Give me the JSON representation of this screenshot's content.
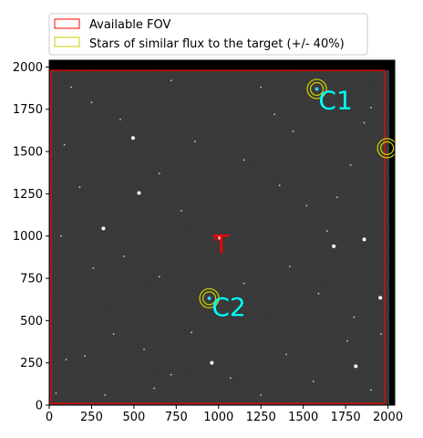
{
  "chart_data": {
    "type": "scatter",
    "title": "",
    "xlabel": "",
    "ylabel": "",
    "xlim": [
      0,
      2040
    ],
    "ylim": [
      0,
      2040
    ],
    "xticks": [
      0,
      250,
      500,
      750,
      1000,
      1250,
      1500,
      1750,
      2000
    ],
    "yticks": [
      0,
      250,
      500,
      750,
      1000,
      1250,
      1500,
      1750,
      2000
    ],
    "background": "star-field-image",
    "legend": {
      "placement": "top",
      "entries": [
        {
          "label": "Available FOV",
          "color": "#ff0000"
        },
        {
          "label": "Stars of similar flux to the target (+/- 40%)",
          "color": "#cccc00"
        }
      ]
    },
    "fov_rectangle": {
      "x0": 10,
      "x1": 1980,
      "y0": 10,
      "y1": 1980,
      "color": "#ff0000"
    },
    "similar_flux_stars": [
      {
        "x": 1580,
        "y": 1870
      },
      {
        "x": 1995,
        "y": 1520
      },
      {
        "x": 945,
        "y": 632
      }
    ],
    "annotations": [
      {
        "text": "C1",
        "x": 1590,
        "y": 1750,
        "color": "#00ffff"
      },
      {
        "text": "C2",
        "x": 960,
        "y": 530,
        "color": "#00ffff"
      },
      {
        "text": "T",
        "x": 970,
        "y": 900,
        "color": "#ff0000"
      }
    ],
    "target_marker": {
      "x": 985,
      "y": 988,
      "color": "#ff0000"
    },
    "bright_stars": [
      {
        "x": 1580,
        "y": 1870,
        "c": "#33ccff"
      },
      {
        "x": 945,
        "y": 632,
        "c": "#33ccff"
      },
      {
        "x": 1680,
        "y": 940,
        "c": "#ffffff"
      },
      {
        "x": 1810,
        "y": 230,
        "c": "#ffffff"
      },
      {
        "x": 495,
        "y": 1580,
        "c": "#ffffff"
      },
      {
        "x": 530,
        "y": 1255,
        "c": "#ffffff"
      },
      {
        "x": 1955,
        "y": 635,
        "c": "#ffffff"
      },
      {
        "x": 320,
        "y": 1045,
        "c": "#ffffff"
      },
      {
        "x": 960,
        "y": 250,
        "c": "#ffffff"
      },
      {
        "x": 1860,
        "y": 980,
        "c": "#ffffff"
      },
      {
        "x": 1005,
        "y": 990,
        "c": "#ffffff"
      }
    ],
    "faint_stars": [
      {
        "x": 130,
        "y": 1880
      },
      {
        "x": 250,
        "y": 1790
      },
      {
        "x": 420,
        "y": 1690
      },
      {
        "x": 720,
        "y": 1920
      },
      {
        "x": 860,
        "y": 1560
      },
      {
        "x": 1150,
        "y": 1450
      },
      {
        "x": 1250,
        "y": 1880
      },
      {
        "x": 1330,
        "y": 1720
      },
      {
        "x": 1440,
        "y": 1620
      },
      {
        "x": 1900,
        "y": 1760
      },
      {
        "x": 1860,
        "y": 1670
      },
      {
        "x": 1780,
        "y": 1420
      },
      {
        "x": 90,
        "y": 1540
      },
      {
        "x": 180,
        "y": 1290
      },
      {
        "x": 650,
        "y": 1370
      },
      {
        "x": 780,
        "y": 1150
      },
      {
        "x": 1360,
        "y": 1300
      },
      {
        "x": 1520,
        "y": 1180
      },
      {
        "x": 1700,
        "y": 1230
      },
      {
        "x": 70,
        "y": 1000
      },
      {
        "x": 260,
        "y": 810
      },
      {
        "x": 440,
        "y": 880
      },
      {
        "x": 650,
        "y": 760
      },
      {
        "x": 1150,
        "y": 720
      },
      {
        "x": 1420,
        "y": 820
      },
      {
        "x": 1590,
        "y": 660
      },
      {
        "x": 1800,
        "y": 520
      },
      {
        "x": 1960,
        "y": 420
      },
      {
        "x": 100,
        "y": 270
      },
      {
        "x": 210,
        "y": 290
      },
      {
        "x": 380,
        "y": 420
      },
      {
        "x": 560,
        "y": 330
      },
      {
        "x": 720,
        "y": 180
      },
      {
        "x": 1070,
        "y": 160
      },
      {
        "x": 1400,
        "y": 300
      },
      {
        "x": 1560,
        "y": 140
      },
      {
        "x": 1760,
        "y": 380
      },
      {
        "x": 1900,
        "y": 90
      },
      {
        "x": 40,
        "y": 70
      },
      {
        "x": 330,
        "y": 60
      },
      {
        "x": 620,
        "y": 100
      },
      {
        "x": 1250,
        "y": 60
      },
      {
        "x": 1640,
        "y": 1030
      },
      {
        "x": 840,
        "y": 430
      }
    ]
  }
}
